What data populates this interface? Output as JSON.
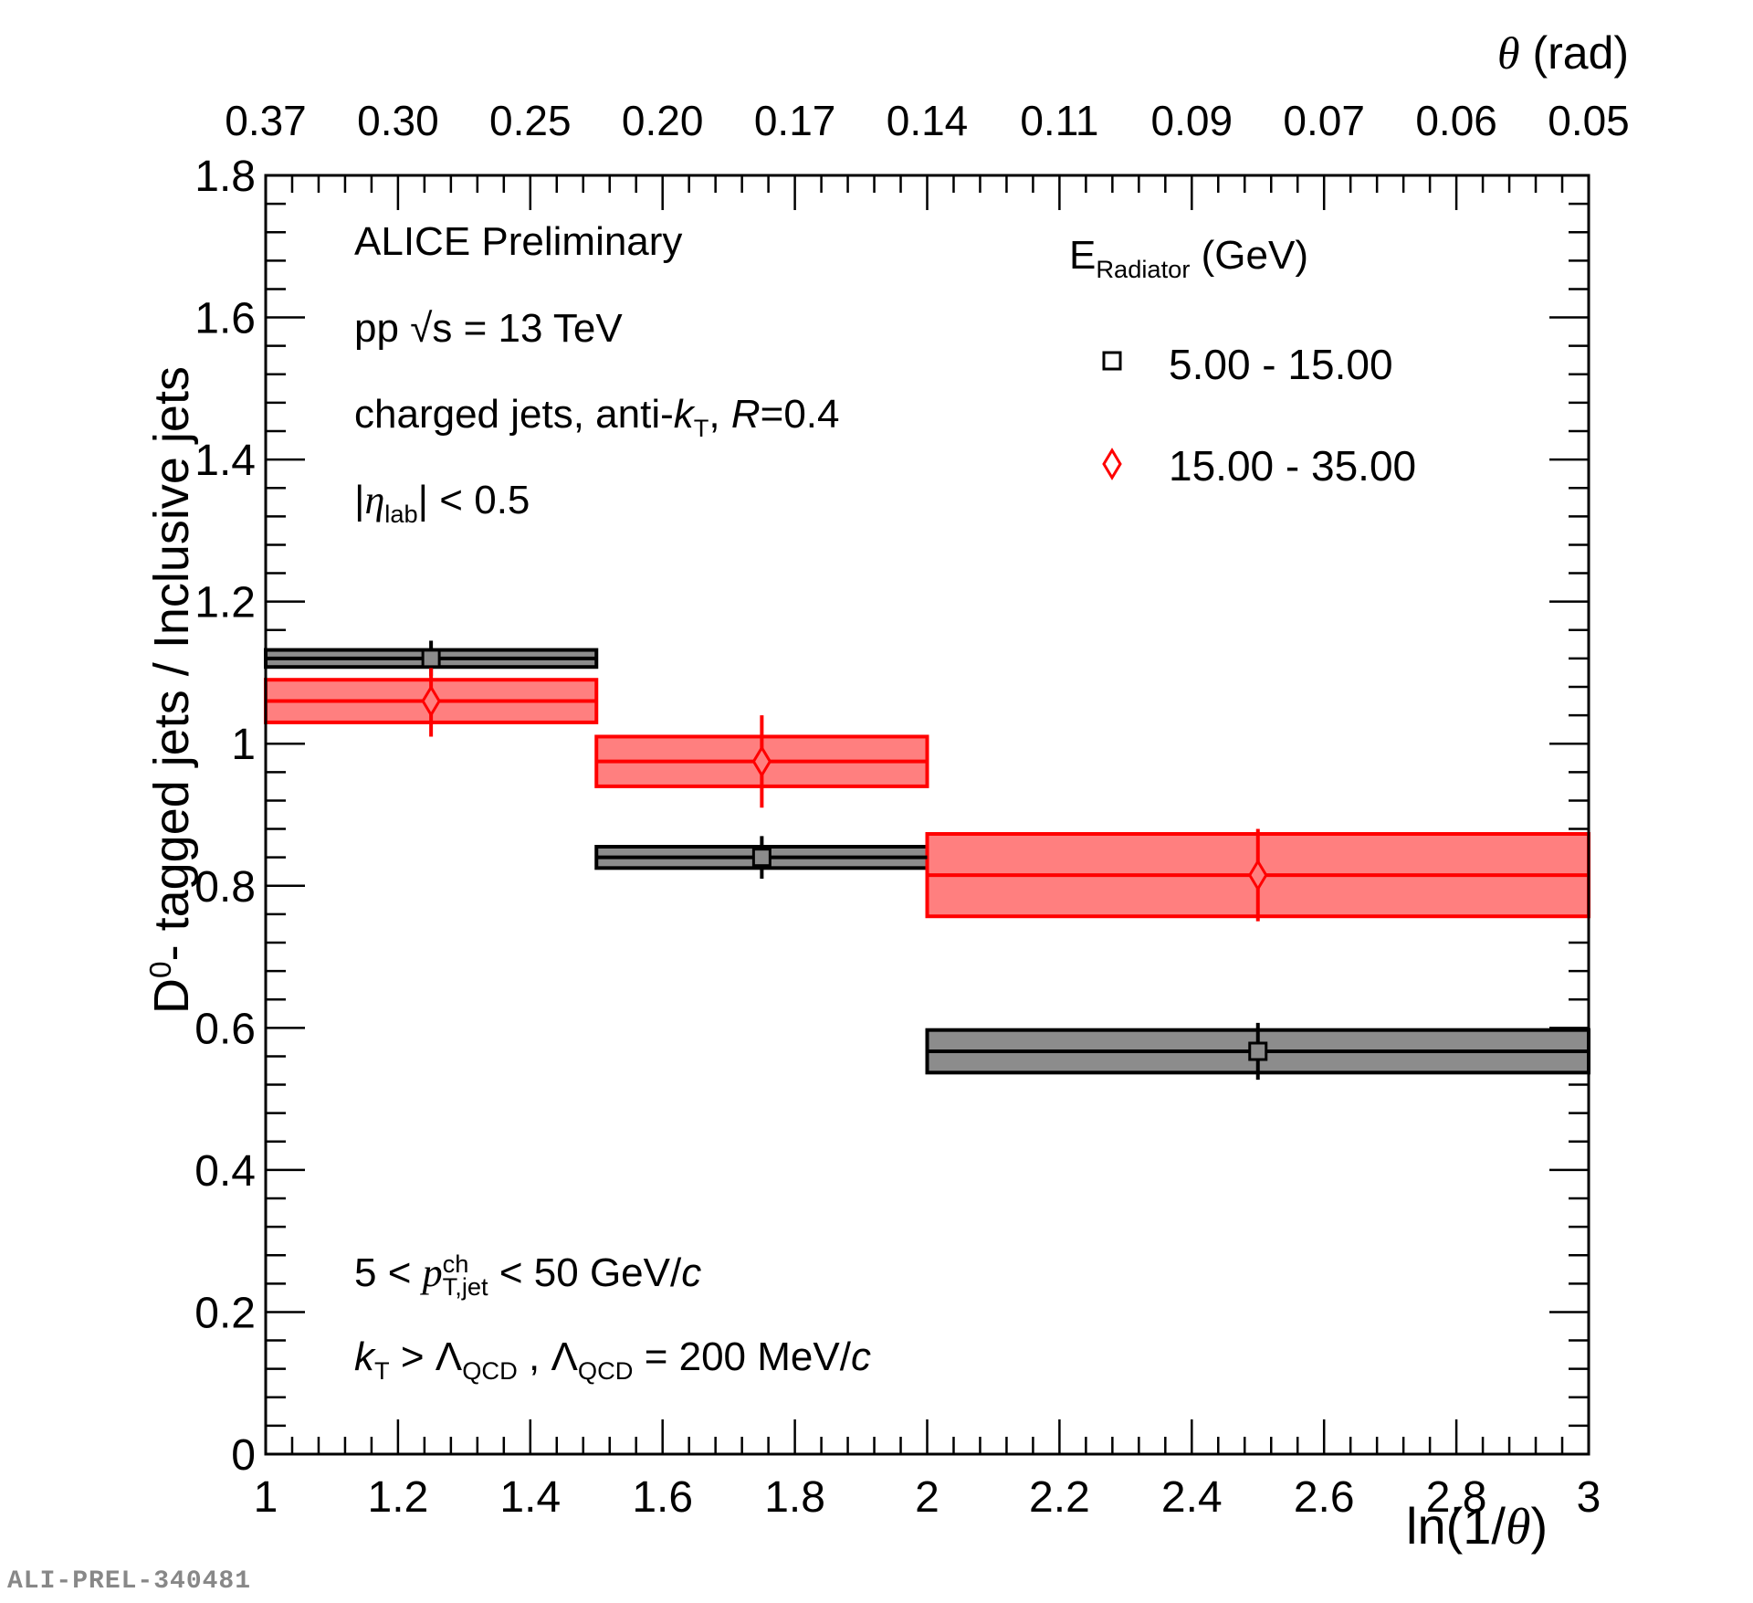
{
  "chart_data": {
    "type": "bar",
    "title": "",
    "xlabel": "ln(1/θ)",
    "ylabel": "D0- tagged jets / Inclusive jets",
    "top_xlabel": "θ (rad)",
    "xlim": [
      1,
      3
    ],
    "ylim": [
      0,
      1.8
    ],
    "x_ticks": [
      "1",
      "1.2",
      "1.4",
      "1.6",
      "1.8",
      "2",
      "2.2",
      "2.4",
      "2.6",
      "2.8",
      "3"
    ],
    "y_ticks": [
      "0",
      "0.2",
      "0.4",
      "0.6",
      "0.8",
      "1",
      "1.2",
      "1.4",
      "1.6",
      "1.8"
    ],
    "top_ticks": [
      "0.37",
      "0.30",
      "0.25",
      "0.20",
      "0.17",
      "0.14",
      "0.11",
      "0.09",
      "0.07",
      "0.06",
      "0.05"
    ],
    "legend_title": "E_Radiator (GeV)",
    "legend_position": "top-right",
    "series": [
      {
        "name": "5.00 - 15.00",
        "marker": "open-square",
        "color": "#000000",
        "fill": "#8c8c8c",
        "points": [
          {
            "x_low": 1.0,
            "x_high": 1.5,
            "x": 1.25,
            "y": 1.12,
            "stat": 0.025,
            "syst": 0.012
          },
          {
            "x_low": 1.5,
            "x_high": 2.0,
            "x": 1.75,
            "y": 0.84,
            "stat": 0.03,
            "syst": 0.015
          },
          {
            "x_low": 2.0,
            "x_high": 3.0,
            "x": 2.5,
            "y": 0.567,
            "stat": 0.04,
            "syst": 0.03
          }
        ]
      },
      {
        "name": "15.00 - 35.00",
        "marker": "open-diamond",
        "color": "#ff0000",
        "fill": "#ff7f7f",
        "points": [
          {
            "x_low": 1.0,
            "x_high": 1.5,
            "x": 1.25,
            "y": 1.06,
            "stat": 0.05,
            "syst": 0.03
          },
          {
            "x_low": 1.5,
            "x_high": 2.0,
            "x": 1.75,
            "y": 0.975,
            "stat": 0.065,
            "syst": 0.035
          },
          {
            "x_low": 2.0,
            "x_high": 3.0,
            "x": 2.5,
            "y": 0.815,
            "stat": 0.065,
            "syst": 0.058
          }
        ]
      }
    ],
    "annotations": {
      "experiment": "ALICE Preliminary",
      "system_prefix": "pp",
      "sqrt_s": "√s",
      "energy": "= 13 TeV",
      "jets_prefix": "charged jets, anti-",
      "jets_k": "k",
      "jets_k_sub": "T",
      "jets_sep": ", ",
      "jets_R": "R",
      "jets_R_val": "=0.4",
      "eta_open": "|",
      "eta": "η",
      "eta_sub": "lab",
      "eta_close": "| < 0.5",
      "pt_prefix": "5 < ",
      "pt_p": "p",
      "pt_sup": "ch",
      "pt_sub": "T,jet",
      "pt_suffix": " < 50 GeV/",
      "pt_c": "c",
      "kt_k": "k",
      "kt_sub": "T",
      "kt_mid": " > Λ",
      "kt_qcd1": "QCD",
      "kt_mid2": " , Λ",
      "kt_qcd2": "QCD",
      "kt_suffix": " = 200 MeV/",
      "kt_c": "c",
      "legend_E": "E",
      "legend_E_sub": "Radiator",
      "legend_E_unit": " (GeV)",
      "ylabel_D": "D",
      "ylabel_sup": "0",
      "ylabel_rest": "- tagged jets / Inclusive jets",
      "xlabel_ln": "ln(1/",
      "xlabel_theta": "θ",
      "xlabel_close": ")",
      "top_theta": "θ",
      "top_unit": " (rad)"
    },
    "footer_id": "ALI-PREL-340481"
  }
}
